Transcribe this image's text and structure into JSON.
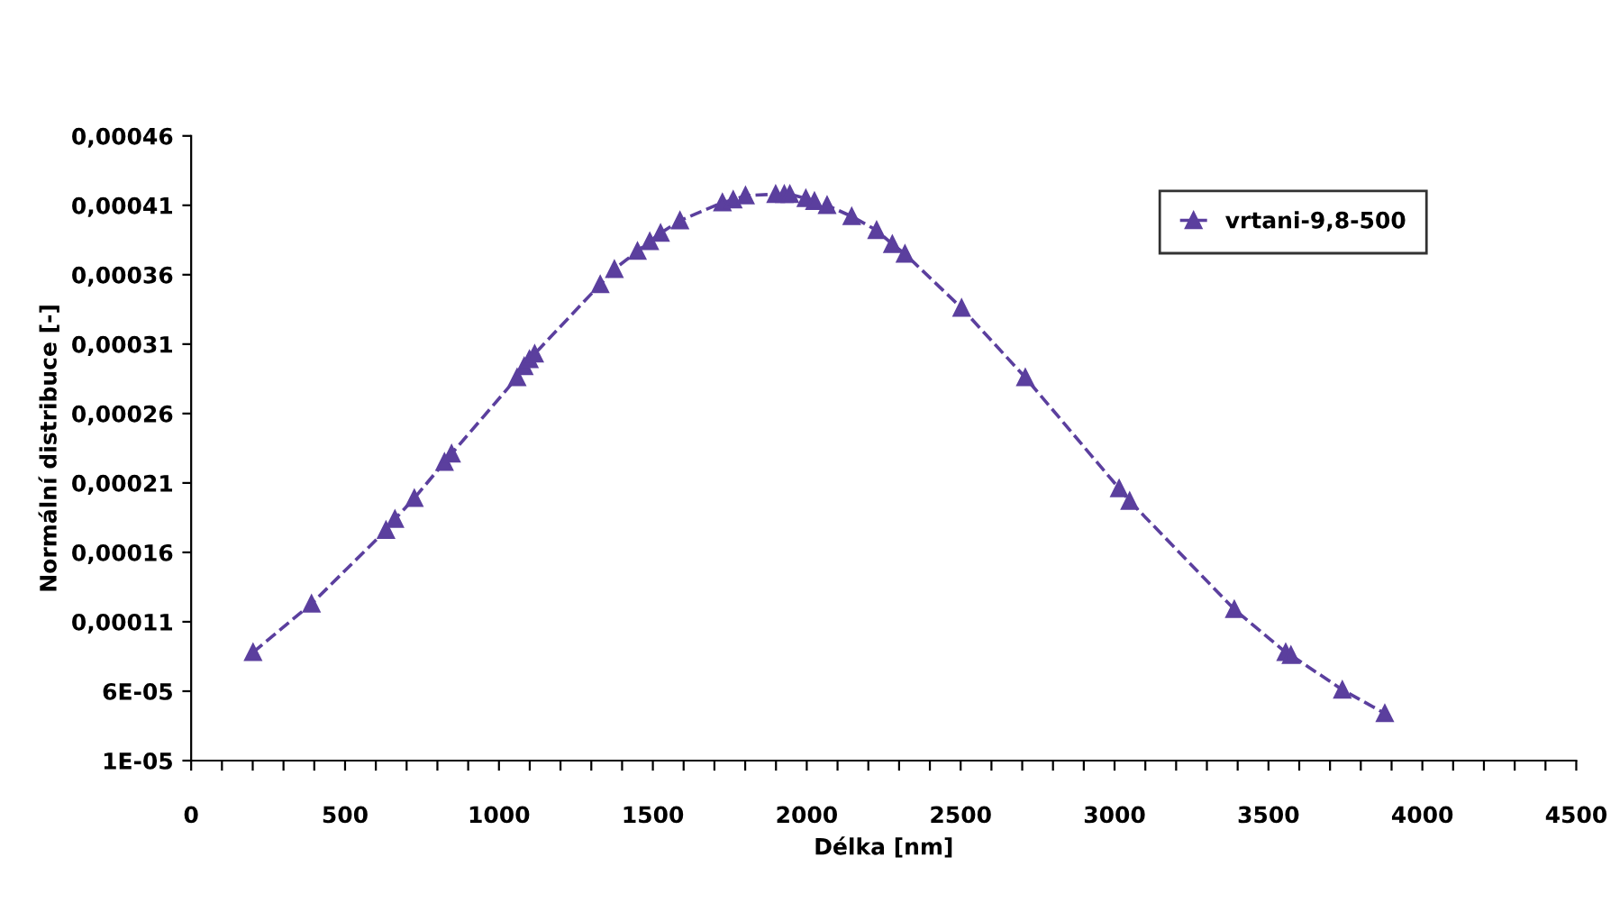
{
  "chart_data": {
    "type": "line",
    "xlabel": "Délka [nm]",
    "ylabel": "Normální distribuce [-]",
    "x": [
      201,
      391,
      633,
      662,
      725,
      823,
      846,
      1059,
      1082,
      1099,
      1116,
      1329,
      1375,
      1450,
      1490,
      1525,
      1588,
      1726,
      1761,
      1801,
      1899,
      1927,
      1945,
      1997,
      2025,
      2066,
      2146,
      2227,
      2278,
      2319,
      2503,
      2710,
      3015,
      3049,
      3389,
      3556,
      3573,
      3740,
      3878
    ],
    "series": [
      {
        "name": "vrtani-9,8-500",
        "color": "#5b3f9e",
        "values": [
          8.8e-05,
          0.000123,
          0.000176,
          0.000184,
          0.000199,
          0.000225,
          0.000231,
          0.000286,
          0.000294,
          0.000299,
          0.000303,
          0.000353,
          0.000364,
          0.000377,
          0.000384,
          0.00039,
          0.000399,
          0.000412,
          0.000414,
          0.000417,
          0.000418,
          0.000418,
          0.000418,
          0.000415,
          0.000413,
          0.00041,
          0.000402,
          0.000392,
          0.000382,
          0.000375,
          0.000336,
          0.000286,
          0.000206,
          0.000197,
          0.000119,
          8.8e-05,
          8.6e-05,
          6.1e-05,
          4.4e-05
        ]
      }
    ],
    "marker": "triangle",
    "line_style": "dashed",
    "legend": "top right",
    "grid": false,
    "xlim": [
      0,
      4500
    ],
    "xticks": [
      0,
      {
        "value": 100,
        "label": null
      },
      {
        "value": 200,
        "label": null
      },
      {
        "value": 300,
        "label": null
      },
      {
        "value": 400,
        "label": null
      },
      500,
      {
        "value": 600,
        "label": null
      },
      {
        "value": 700,
        "label": null
      },
      {
        "value": 800,
        "label": null
      },
      {
        "value": 900,
        "label": null
      },
      1000,
      {
        "value": 1100,
        "label": null
      },
      {
        "value": 1200,
        "label": null
      },
      {
        "value": 1300,
        "label": null
      },
      {
        "value": 1400,
        "label": null
      },
      1500,
      {
        "value": 1600,
        "label": null
      },
      {
        "value": 1700,
        "label": null
      },
      {
        "value": 1800,
        "label": null
      },
      {
        "value": 1900,
        "label": null
      },
      2000,
      {
        "value": 2100,
        "label": null
      },
      {
        "value": 2200,
        "label": null
      },
      {
        "value": 2300,
        "label": null
      },
      {
        "value": 2400,
        "label": null
      },
      2500,
      {
        "value": 2600,
        "label": null
      },
      {
        "value": 2700,
        "label": null
      },
      {
        "value": 2800,
        "label": null
      },
      {
        "value": 2900,
        "label": null
      },
      3000,
      {
        "value": 3100,
        "label": null
      },
      {
        "value": 3200,
        "label": null
      },
      {
        "value": 3300,
        "label": null
      },
      {
        "value": 3400,
        "label": null
      },
      3500,
      {
        "value": 3600,
        "label": null
      },
      {
        "value": 3700,
        "label": null
      },
      {
        "value": 3800,
        "label": null
      },
      {
        "value": 3900,
        "label": null
      },
      4000,
      {
        "value": 4100,
        "label": null
      },
      {
        "value": 4200,
        "label": null
      },
      {
        "value": 4300,
        "label": null
      },
      {
        "value": 4400,
        "label": null
      },
      4500
    ],
    "ylim": [
      1e-05,
      0.00046
    ],
    "yticks": [
      {
        "value": 1e-05,
        "label": "1E-05"
      },
      {
        "value": 6e-05,
        "label": "6E-05"
      },
      {
        "value": 0.00011,
        "label": "0,00011"
      },
      {
        "value": 0.00016,
        "label": "0,00016"
      },
      {
        "value": 0.00021,
        "label": "0,00021"
      },
      {
        "value": 0.00026,
        "label": "0,00026"
      },
      {
        "value": 0.00031,
        "label": "0,00031"
      },
      {
        "value": 0.00036,
        "label": "0,00036"
      },
      {
        "value": 0.00041,
        "label": "0,00041"
      },
      {
        "value": 0.00046,
        "label": "0,00046"
      }
    ]
  }
}
